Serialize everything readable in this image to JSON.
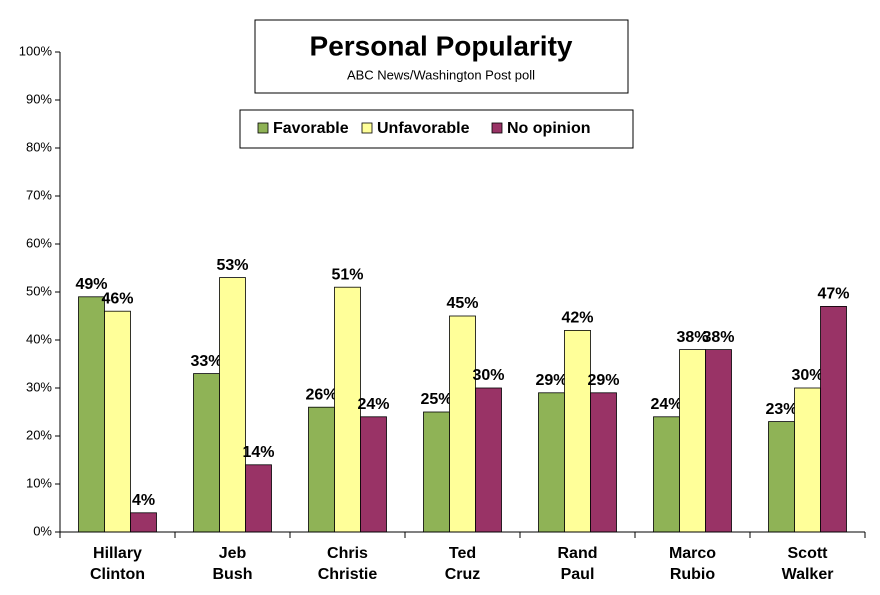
{
  "chart_data": {
    "type": "bar",
    "title": "Personal Popularity",
    "subtitle": "ABC News/Washington  Post poll",
    "categories": [
      [
        "Hillary",
        "Clinton"
      ],
      [
        "Jeb",
        "Bush"
      ],
      [
        "Chris",
        "Christie"
      ],
      [
        "Ted",
        "Cruz"
      ],
      [
        "Rand",
        "Paul"
      ],
      [
        "Marco",
        "Rubio"
      ],
      [
        "Scott",
        "Walker"
      ]
    ],
    "series": [
      {
        "name": "Favorable",
        "color": "#8fb356",
        "values": [
          49,
          33,
          26,
          25,
          29,
          24,
          23
        ],
        "value_labels": [
          "49%",
          "33%",
          "26%",
          "25%",
          "29%",
          "24%",
          "23%"
        ]
      },
      {
        "name": "Unfavorable",
        "color": "#ffff99",
        "values": [
          46,
          53,
          51,
          45,
          42,
          38,
          30
        ],
        "value_labels": [
          "46%",
          "53%",
          "51%",
          "45%",
          "42%",
          "38%",
          "30%"
        ]
      },
      {
        "name": "No opinion",
        "color": "#993366",
        "values": [
          4,
          14,
          24,
          30,
          29,
          38,
          47
        ],
        "value_labels": [
          "4%",
          "14%",
          "24%",
          "30%",
          "29%",
          "38%",
          "47%"
        ]
      }
    ],
    "ylim": [
      0,
      100
    ],
    "yticks": [
      {
        "value": 0,
        "label": "0%"
      },
      {
        "value": 10,
        "label": "10%"
      },
      {
        "value": 20,
        "label": "20%"
      },
      {
        "value": 30,
        "label": "30%"
      },
      {
        "value": 40,
        "label": "40%"
      },
      {
        "value": 50,
        "label": "50%"
      },
      {
        "value": 60,
        "label": "60%"
      },
      {
        "value": 70,
        "label": "70%"
      },
      {
        "value": 80,
        "label": "80%"
      },
      {
        "value": 90,
        "label": "90%"
      },
      {
        "value": 100,
        "label": "100%"
      }
    ],
    "grid": false,
    "legend": "top"
  }
}
